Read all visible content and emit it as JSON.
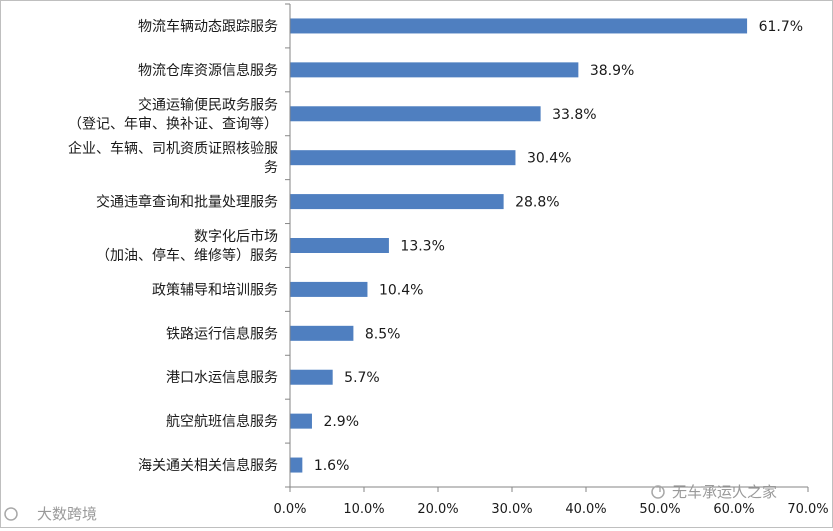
{
  "chart_data": {
    "type": "bar",
    "orientation": "horizontal",
    "categories": [
      [
        "物流车辆动态跟踪服务"
      ],
      [
        "物流仓库资源信息服务"
      ],
      [
        "交通运输便民政务服务",
        "（登记、年审、换补证、查询等）"
      ],
      [
        "企业、车辆、司机资质证照核验服",
        "务"
      ],
      [
        "交通违章查询和批量处理服务"
      ],
      [
        "数字化后市场",
        "（加油、停车、维修等）服务"
      ],
      [
        "政策辅导和培训服务"
      ],
      [
        "铁路运行信息服务"
      ],
      [
        "港口水运信息服务"
      ],
      [
        "航空航班信息服务"
      ],
      [
        "海关通关相关信息服务"
      ]
    ],
    "values": [
      61.7,
      38.9,
      33.8,
      30.4,
      28.8,
      13.3,
      10.4,
      8.5,
      5.7,
      2.9,
      1.6
    ],
    "value_labels": [
      "61.7%",
      "38.9%",
      "33.8%",
      "30.4%",
      "28.8%",
      "13.3%",
      "10.4%",
      "8.5%",
      "5.7%",
      "2.9%",
      "1.6%"
    ],
    "xlim": [
      0,
      70
    ],
    "xticks": [
      0,
      10,
      20,
      30,
      40,
      50,
      60,
      70
    ],
    "xtick_labels": [
      "0.0%",
      "10.0%",
      "20.0%",
      "30.0%",
      "40.0%",
      "50.0%",
      "60.0%",
      "70.0%"
    ],
    "title": "",
    "xlabel": "",
    "ylabel": "",
    "grid": false,
    "legend": "none",
    "bar_color": "#4f7fc0"
  },
  "watermarks": {
    "left": "大数跨境",
    "right": "无车承运人之家"
  }
}
